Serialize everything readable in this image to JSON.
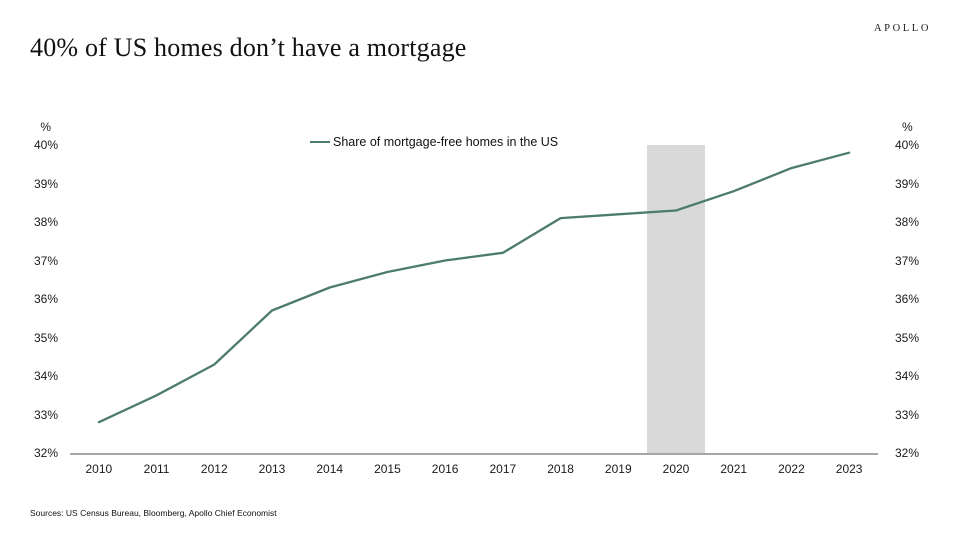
{
  "header": {
    "title": "40% of US homes don’t have a mortgage",
    "logo": "APOLLO"
  },
  "footer": {
    "sources": "Sources: US Census Bureau, Bloomberg, Apollo Chief Economist"
  },
  "chart_data": {
    "type": "line",
    "title": "40% of US homes don’t have a mortgage",
    "x": [
      2010,
      2011,
      2012,
      2013,
      2014,
      2015,
      2016,
      2017,
      2018,
      2019,
      2020,
      2021,
      2022,
      2023
    ],
    "series": [
      {
        "name": "Share of mortgage-free homes in the US",
        "values": [
          32.8,
          33.5,
          34.3,
          35.7,
          36.3,
          36.7,
          37.0,
          37.2,
          38.1,
          38.2,
          38.3,
          38.8,
          39.4,
          39.8
        ],
        "color": "#4d7c6c"
      }
    ],
    "ylim": [
      32,
      40
    ],
    "y_tick_step": 1,
    "y_tick_suffix": "%",
    "y_unit_label": "%",
    "grid": false,
    "legend_position": "top-center",
    "highlight_band": {
      "x": 2020,
      "span_years": 1,
      "color": "#d9d9d9"
    },
    "axis_color": "#a6a6a6"
  }
}
